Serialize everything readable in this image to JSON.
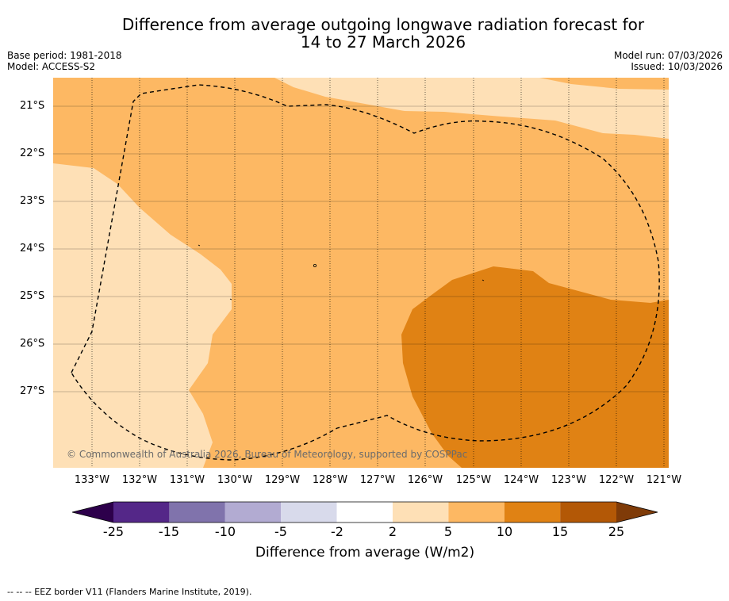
{
  "title": {
    "line1": "Difference from average outgoing longwave radiation forecast for",
    "line2": "14 to 27 March 2026"
  },
  "meta_left": {
    "base_period": "Base period: 1981-2018",
    "model": "Model: ACCESS-S2"
  },
  "meta_right": {
    "model_run": "Model run: 07/03/2026",
    "issued": "Issued: 10/03/2026"
  },
  "latitude_labels": [
    "21°S",
    "22°S",
    "23°S",
    "24°S",
    "25°S",
    "26°S",
    "27°S"
  ],
  "longitude_labels": [
    "133°W",
    "132°W",
    "131°W",
    "130°W",
    "129°W",
    "128°W",
    "127°W",
    "126°W",
    "125°W",
    "124°W",
    "123°W",
    "122°W",
    "121°W"
  ],
  "copyright": "© Commonwealth of Australia 2026, Bureau of Meteorology, supported by COSPPac",
  "colorbar": {
    "title": "Difference from average (W/m2)",
    "tick_labels": [
      "-25",
      "-15",
      "-10",
      "-5",
      "-2",
      "2",
      "5",
      "10",
      "15",
      "25"
    ],
    "colors": [
      "#2d004b",
      "#542788",
      "#8073ac",
      "#b2abd2",
      "#d8daeb",
      "#ffffff",
      "#fee0b6",
      "#fdb863",
      "#e08214",
      "#b35806",
      "#7f3b08"
    ]
  },
  "legend_footnote": "--  --  -- EEZ border V11 (Flanders Marine Institute, 2019)."
}
